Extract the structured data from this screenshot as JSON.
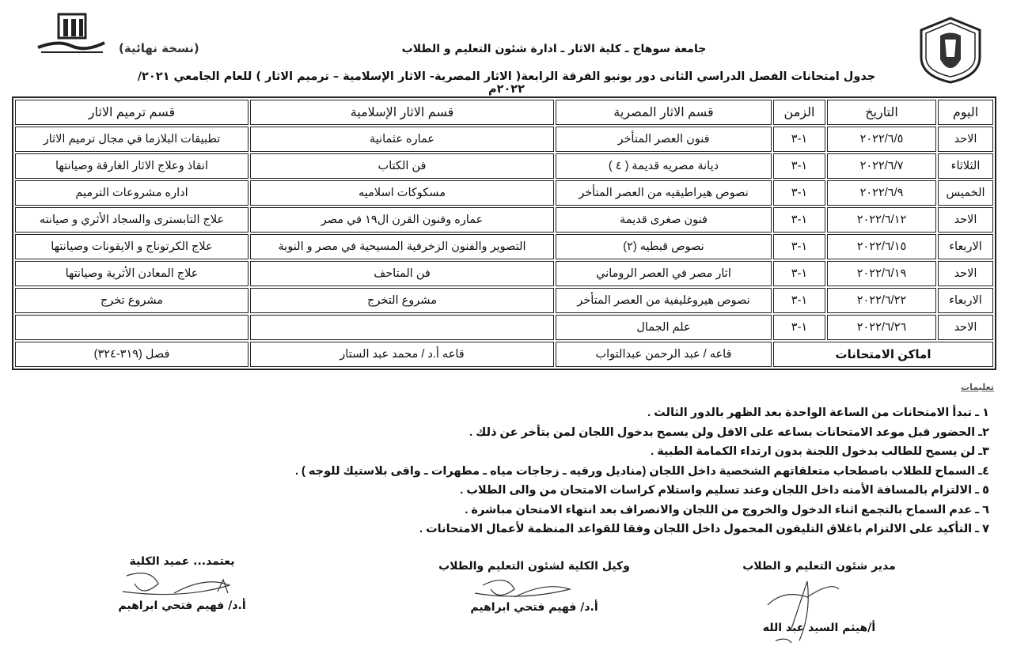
{
  "header": {
    "line1": "جامعة سوهاج ـ كلية الاثار ـ ادارة شئون التعليم و الطلاب",
    "line2": "جدول امتحانات الفصل الدراسي الثانى دور يونيو الفرقة الرابعة( الاثار المصرية- الاثار الإسلامية – ترميم الاثار ) للعام الجامعي ٢٠٢١/ ٢٠٢٢م",
    "version": "(نسخة نهائية)"
  },
  "logos": {
    "right": "university-seal",
    "left": "faculty-logo"
  },
  "table": {
    "headers": [
      "اليوم",
      "التاريخ",
      "الزمن",
      "قسم الاثار المصرية",
      "قسم الاثار الإسلامية",
      "قسم ترميم الاثار"
    ],
    "rows": [
      [
        "الاحد",
        "٢٠٢٢/٦/٥",
        "١-٣",
        "فنون العصر المتأخر",
        "عماره عثمانية",
        "تطبيقات البلازما في مجال ترميم الاثار"
      ],
      [
        "الثلاثاء",
        "٢٠٢٢/٦/٧",
        "١-٣",
        "ديانة مصريه قديمة ( ٤ )",
        "فن الكتاب",
        "انقاذ وعلاج الاثار الغارقة وصيانتها"
      ],
      [
        "الخميس",
        "٢٠٢٢/٦/٩",
        "١-٣",
        "نصوص هيراطيقيه من العصر المتأخر",
        "مسكوكات اسلاميه",
        "اداره مشروعات الترميم"
      ],
      [
        "الاحد",
        "٢٠٢٢/٦/١٢",
        "١-٣",
        "فنون صغرى قديمة",
        "عماره وفنون القرن ال١٩ في مصر",
        "علاج التابسترى والسجاد الأثري و صيانته"
      ],
      [
        "الاربعاء",
        "٢٠٢٢/٦/١٥",
        "١-٣",
        "نصوص قبطيه (٢)",
        "التصوير والفنون الزخرفية المسيحية في مصر و النوبة",
        "علاج الكرتوناج و الايقونات وصيانتها"
      ],
      [
        "الاحد",
        "٢٠٢٢/٦/١٩",
        "١-٣",
        "اثار مصر في العصر الروماني",
        "فن المتاحف",
        "علاج المعادن الأثرية وصيانتها"
      ],
      [
        "الاربعاء",
        "٢٠٢٢/٦/٢٢",
        "١-٣",
        "نصوص هيروغليفية من العصر المتأخر",
        "مشروع التخرج",
        "مشروع تخرج"
      ],
      [
        "الاحد",
        "٢٠٢٢/٦/٢٦",
        "١-٣",
        "علم الجمال",
        "",
        ""
      ]
    ],
    "locations": {
      "label": "اماكن الامتحانات",
      "egyptian": "قاعه / عبد الرحمن عبدالتواب",
      "islamic": "قاعه أ.د / محمد عبد الستار",
      "restoration": "فصل (٣١٩-٣٢٤)"
    }
  },
  "instructions": {
    "title": "تعليمات",
    "items": [
      "١ ـ تبدأ الامتحانات من الساعة الواحدة بعد الظهر  بالدور الثالث .",
      "٢ـ الحضور قبل موعد الامتحانات بساعه على الاقل ولن يسمح بدخول اللجان لمن يتأخر عن ذلك .",
      "٣ـ لن يسمح للطالب بدخول اللجنة بدون ارتداء الكمامة الطبية .",
      "٤ـ السماح للطلاب باصطحاب متعلقاتهم الشخصية داخل اللجان (مناديل ورقيه ـ زجاجات مياه ـ مطهرات ـ  واقى بلاستيك للوجه ) .",
      "٥ ـ الالتزام بالمسافة الأمنه داخل اللجان وعند تسليم واستلام كراسات الامتحان من والى الطلاب .",
      "٦ ـ عدم السماح بالتجمع اثناء الدخول والخروج من اللجان والانصراف بعد انتهاء الامتحان مباشرة .",
      "٧ ـ التأكيد على الالتزام باغلاق التليفون المحمول داخل اللجان وفقا للقواعد المنظمة لأعمال الامتحانات ."
    ]
  },
  "signatures": [
    {
      "title": "مدير شئون التعليم و الطلاب",
      "name": "أ/هيثم السيد عبد الله"
    },
    {
      "title": "وكيل الكلية  لشئون التعليم والطلاب",
      "name": "أ.د/ فهيم فتحي ابراهيم"
    },
    {
      "title": "يعتمد... عميد الكلية",
      "name": "أ.د/ فهيم فتحي ابراهيم"
    }
  ]
}
